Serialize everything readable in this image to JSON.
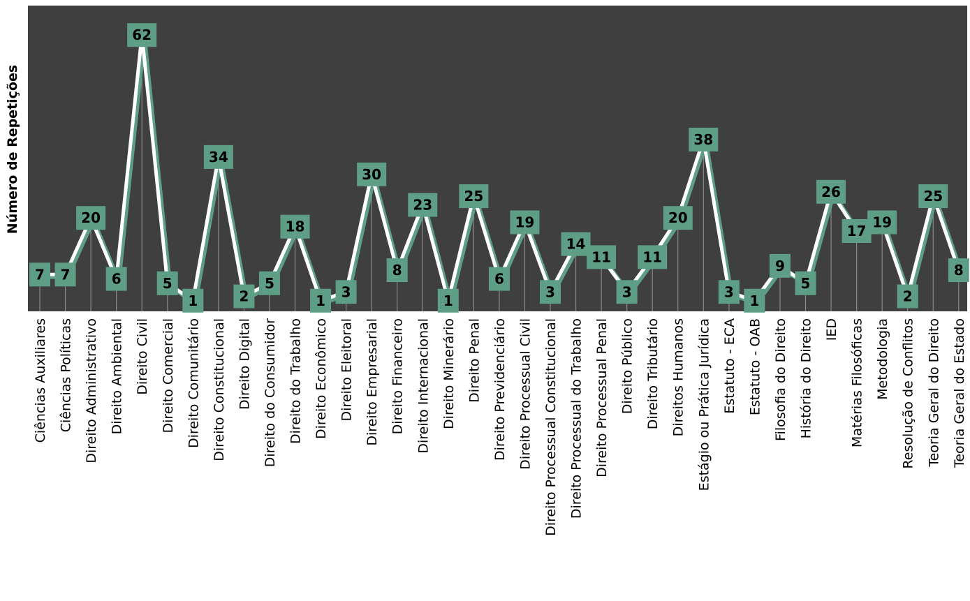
{
  "chart_data": {
    "type": "line",
    "title": "",
    "xlabel": "",
    "ylabel": "Número de Repetições",
    "grid": false,
    "legend": "none",
    "categories": [
      "Ciências Auxiliares",
      "Ciências Políticas",
      "Direito Administrativo",
      "Direito Ambiental",
      "Direito Civil",
      "Direito Comercial",
      "Direito Comunitário",
      "Direito Constitucional",
      "Direito Digital",
      "Direito do Consumidor",
      "Direito do Trabalho",
      "Direito Econômico",
      "Direito Eleitoral",
      "Direito Empresarial",
      "Direito Financeiro",
      "Direito Internacional",
      "Direito Minerário",
      "Direito Penal",
      "Direito Previdenciário",
      "Direito Processual Civil",
      "Direito Processual Constitucional",
      "Direito Processual do Trabalho",
      "Direito Processual Penal",
      "Direito Público",
      "Direito Tributário",
      "Direitos Humanos",
      "Estágio ou Prática Jurídica",
      "Estatuto - ECA",
      "Estatuto - OAB",
      "Filosofia do Direito",
      "História do Direito",
      "IED",
      "Matérias Filosóficas",
      "Metodologia",
      "Resolução de Conflitos",
      "Teoria Geral do Direito",
      "Teoria Geral do Estado"
    ],
    "series": [
      {
        "values": [
          7,
          7,
          20,
          6,
          62,
          5,
          1,
          34,
          2,
          5,
          18,
          1,
          3,
          30,
          8,
          23,
          1,
          25,
          6,
          19,
          3,
          14,
          11,
          3,
          11,
          20,
          38,
          3,
          1,
          9,
          5,
          26,
          17,
          19,
          2,
          25,
          8
        ]
      }
    ],
    "ylim": [
      0,
      66
    ],
    "colors": {
      "plot_background": "#3f3f3f",
      "line": "#ffffff",
      "line_shadow": "#5e9e86",
      "label_box": "#5e9e86",
      "drop_line": "#8a8a8a"
    }
  }
}
